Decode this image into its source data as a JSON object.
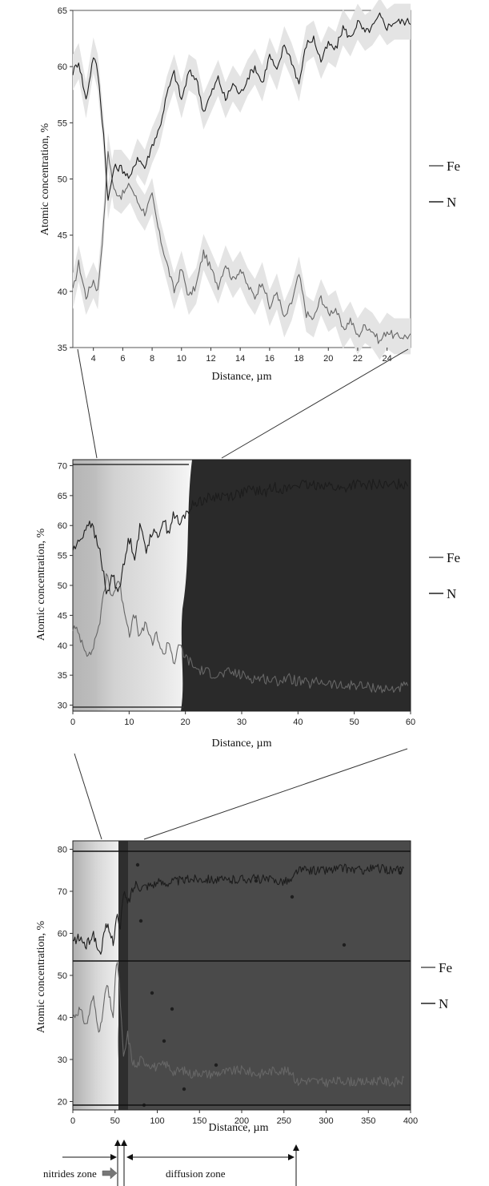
{
  "chart_data": [
    {
      "type": "line",
      "xlabel": "Distance, µm",
      "ylabel": "Atomic concentration, %",
      "xlim": [
        2.6,
        25.6
      ],
      "ylim": [
        35,
        65
      ],
      "xticks": [
        4,
        6,
        8,
        10,
        12,
        14,
        16,
        18,
        20,
        22,
        24
      ],
      "yticks": [
        35,
        40,
        45,
        50,
        55,
        60,
        65
      ],
      "legend": [
        "Fe",
        "N"
      ],
      "legend_position": "right",
      "series": [
        {
          "name": "Fe",
          "x": [
            2.6,
            3.0,
            3.5,
            4.0,
            4.3,
            4.7,
            5.0,
            5.4,
            5.9,
            6.5,
            7.0,
            7.5,
            8.0,
            8.5,
            9.0,
            9.5,
            10.0,
            10.5,
            11.0,
            11.5,
            12.0,
            12.5,
            13.0,
            13.5,
            14.0,
            14.5,
            15.0,
            15.5,
            16.0,
            16.5,
            17.0,
            17.5,
            18.0,
            18.5,
            19.0,
            19.5,
            20.0,
            20.5,
            21.0,
            21.5,
            22.0,
            22.5,
            23.0,
            23.5,
            24.0,
            24.5,
            25.0,
            25.6
          ],
          "values": [
            40,
            42.5,
            39.5,
            41,
            40,
            46,
            52.5,
            49,
            48.5,
            49.5,
            48,
            47,
            48.5,
            45,
            42.5,
            40,
            42,
            39.5,
            40.5,
            43.5,
            42,
            40.5,
            42.5,
            41,
            42,
            40.5,
            39.5,
            41,
            38.5,
            40,
            37.5,
            39,
            41.5,
            38,
            37.5,
            39.5,
            38,
            38.5,
            36.5,
            37.5,
            36,
            37,
            36.5,
            35.5,
            36.5,
            36,
            36,
            36
          ]
        },
        {
          "name": "N",
          "x": [
            2.6,
            3.0,
            3.5,
            4.0,
            4.3,
            4.7,
            5.0,
            5.4,
            5.9,
            6.5,
            7.0,
            7.5,
            8.0,
            8.5,
            9.0,
            9.5,
            10.0,
            10.5,
            11.0,
            11.5,
            12.0,
            12.5,
            13.0,
            13.5,
            14.0,
            14.5,
            15.0,
            15.5,
            16.0,
            16.5,
            17.0,
            17.5,
            18.0,
            18.5,
            19.0,
            19.5,
            20.0,
            20.5,
            21.0,
            21.5,
            22.0,
            22.5,
            23.0,
            23.5,
            24.0,
            24.5,
            25.0,
            25.6
          ],
          "values": [
            59.5,
            60.5,
            57,
            61,
            59.5,
            54,
            48,
            51,
            51,
            50,
            52,
            51,
            53,
            54.5,
            57.5,
            59.5,
            57,
            59.5,
            59,
            56,
            57.5,
            59,
            57,
            58.5,
            57.5,
            59,
            60,
            58.5,
            61,
            59.5,
            62,
            60.5,
            58.5,
            62,
            62.5,
            60.5,
            62,
            61.5,
            63.5,
            62.5,
            64,
            63,
            63.5,
            64.5,
            63.5,
            64,
            64,
            64
          ]
        }
      ]
    },
    {
      "type": "line",
      "xlabel": "Distance, µm",
      "ylabel": "Atomic concentration, %",
      "xlim": [
        0,
        60
      ],
      "ylim": [
        29,
        71
      ],
      "xticks": [
        0,
        10,
        20,
        30,
        40,
        50,
        60
      ],
      "yticks": [
        30,
        35,
        40,
        45,
        50,
        55,
        60,
        65,
        70
      ],
      "legend": [
        "Fe",
        "N"
      ],
      "legend_position": "right",
      "series": [
        {
          "name": "Fe",
          "x": [
            0,
            1,
            2,
            3,
            4,
            5,
            6,
            7,
            8,
            9,
            10,
            11,
            12,
            13,
            14,
            15,
            16,
            17,
            18,
            19,
            20,
            21,
            22,
            24,
            26,
            28,
            30,
            32,
            34,
            36,
            38,
            40,
            42,
            44,
            46,
            48,
            50,
            52,
            54,
            56,
            58,
            59.5
          ],
          "values": [
            43,
            42,
            40,
            38,
            41,
            45,
            52,
            48,
            51,
            47,
            42,
            45,
            41,
            44,
            40,
            42,
            38,
            41,
            37,
            40,
            38,
            37,
            36,
            35.5,
            35,
            35.5,
            35,
            34.5,
            34.5,
            34,
            34.5,
            34,
            33.5,
            34,
            33.5,
            33,
            33.5,
            33,
            33,
            32.5,
            33,
            33
          ]
        },
        {
          "name": "N",
          "x": [
            0,
            1,
            2,
            3,
            4,
            5,
            6,
            7,
            8,
            9,
            10,
            11,
            12,
            13,
            14,
            15,
            16,
            17,
            18,
            19,
            20,
            21,
            22,
            24,
            26,
            28,
            30,
            32,
            34,
            36,
            38,
            40,
            42,
            44,
            46,
            48,
            50,
            52,
            54,
            56,
            58,
            59.5
          ],
          "values": [
            56,
            57,
            59,
            61,
            58,
            55,
            48,
            52,
            49,
            53,
            58,
            55,
            60,
            56,
            59,
            58,
            61,
            59,
            62,
            60,
            62,
            63,
            64,
            64.5,
            65,
            65,
            65.5,
            66,
            65.5,
            66.5,
            66,
            67,
            66.5,
            67,
            66.5,
            66,
            67,
            66.5,
            67,
            66.5,
            67,
            67
          ]
        }
      ]
    },
    {
      "type": "line",
      "xlabel": "Distance, µm",
      "ylabel": "Atomic concentration, %",
      "xlim": [
        0,
        400
      ],
      "ylim": [
        18,
        82
      ],
      "xticks": [
        0,
        50,
        100,
        150,
        200,
        250,
        300,
        350,
        400
      ],
      "yticks": [
        20,
        30,
        40,
        50,
        60,
        70,
        80
      ],
      "legend": [
        "Fe",
        "N"
      ],
      "legend_position": "right",
      "series": [
        {
          "name": "Fe",
          "x": [
            0,
            8,
            16,
            24,
            32,
            40,
            48,
            52,
            56,
            60,
            65,
            70,
            75,
            80,
            90,
            100,
            110,
            120,
            130,
            140,
            150,
            160,
            180,
            200,
            220,
            240,
            260,
            265,
            270,
            280,
            300,
            320,
            340,
            360,
            380,
            392
          ],
          "values": [
            40,
            42,
            38,
            45,
            36,
            48,
            40,
            55,
            45,
            30,
            36,
            30,
            28,
            30,
            29,
            28,
            29,
            27,
            27.5,
            26.5,
            27,
            26.5,
            27,
            27.5,
            26.5,
            27.5,
            27,
            24.5,
            25,
            25,
            24.5,
            25,
            24.5,
            25,
            24.5,
            25
          ]
        },
        {
          "name": "N",
          "x": [
            0,
            8,
            16,
            24,
            32,
            40,
            48,
            52,
            56,
            60,
            65,
            70,
            75,
            80,
            90,
            100,
            110,
            120,
            130,
            140,
            150,
            160,
            180,
            200,
            220,
            240,
            260,
            265,
            270,
            280,
            300,
            320,
            340,
            360,
            380,
            392
          ],
          "values": [
            58,
            59,
            57,
            60,
            55,
            62,
            58,
            65,
            60,
            70,
            67,
            70,
            72,
            71,
            71.5,
            72,
            72,
            72.5,
            72.5,
            73,
            73,
            73,
            72.5,
            73,
            73,
            72.5,
            72.5,
            75,
            75,
            75,
            75,
            75.5,
            75,
            75.5,
            75,
            75
          ]
        }
      ]
    }
  ],
  "zones": {
    "nitrides_label": "nitrides zone",
    "diffusion_label": "diffusion zone"
  }
}
